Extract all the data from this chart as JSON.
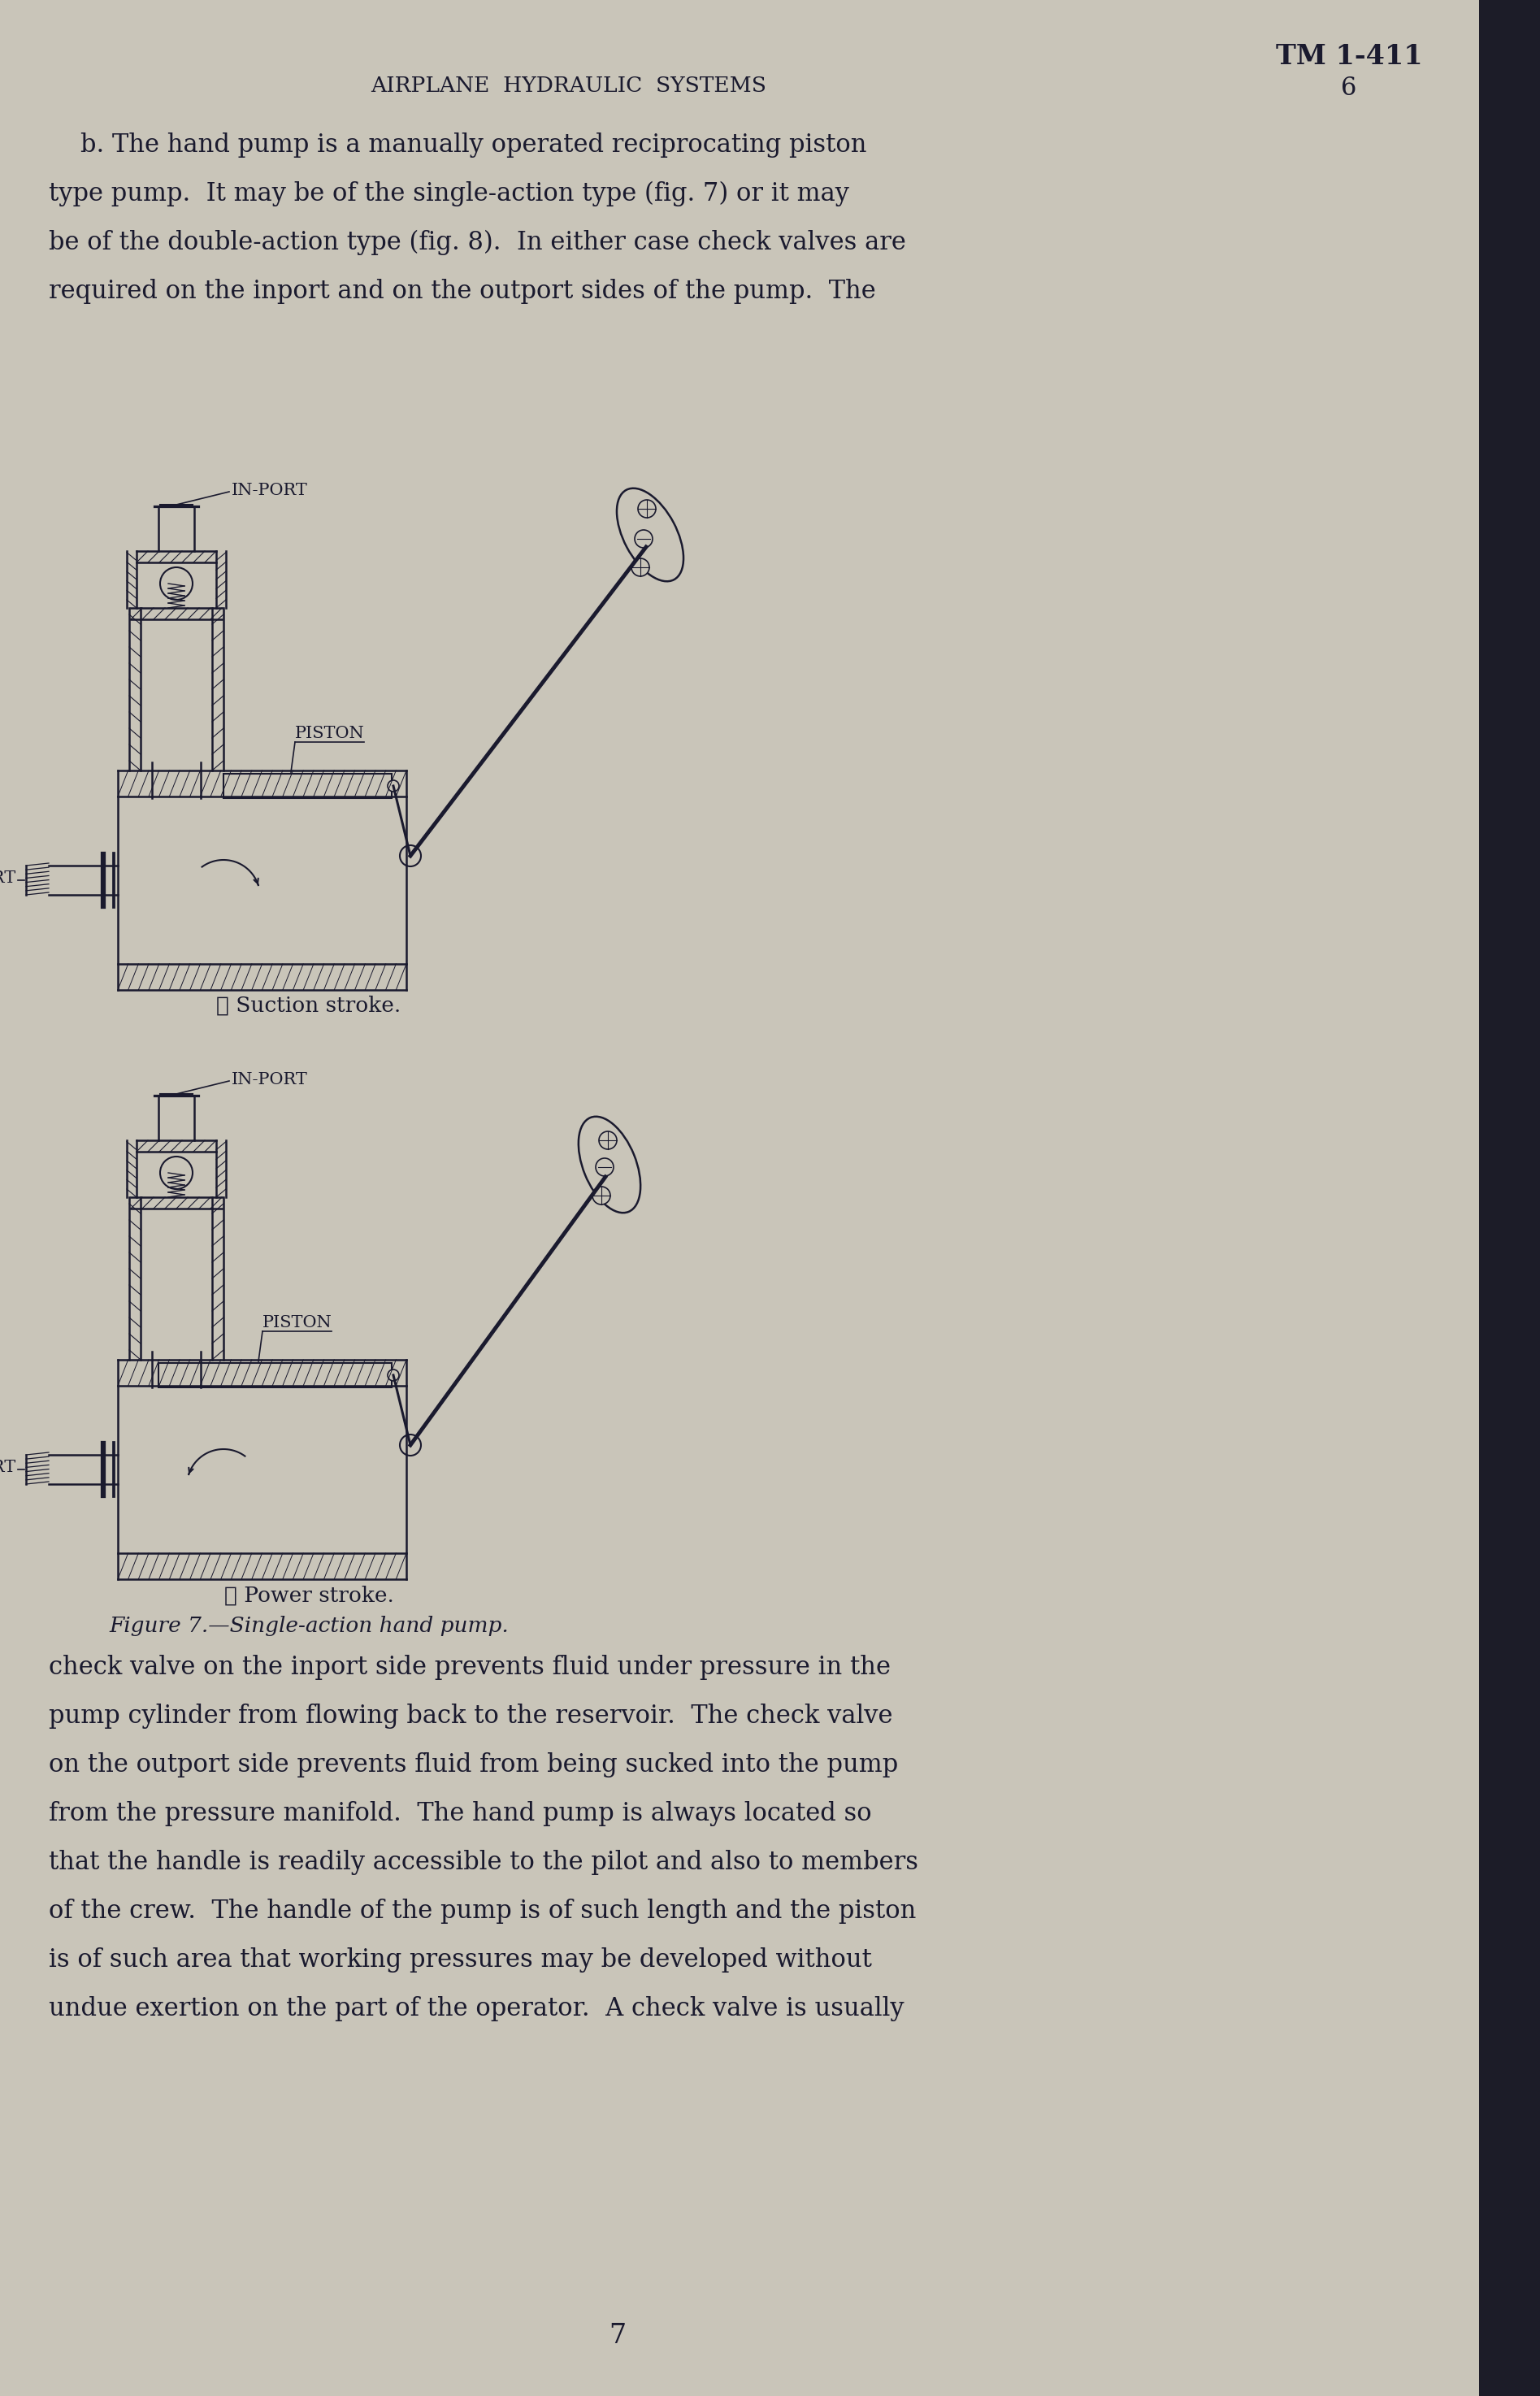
{
  "bg_color": "#c9c5b9",
  "text_color": "#1a1a2e",
  "page_number": "7",
  "tm_number": "TM 1-411",
  "chapter_number": "6",
  "header": "AIRPLANE  HYDRAULIC  SYSTEMS",
  "body_text_line1": "    b. The hand pump is a manually operated reciprocating piston",
  "body_text_line2": "type pump.  It may be of the single-action type (fig. 7) or it may",
  "body_text_line3": "be of the double-action type (fig. 8).  In either case check valves are",
  "body_text_line4": "required on the inport and on the outport sides of the pump.  The",
  "caption1": "① Suction stroke.",
  "caption2": "② Power stroke.",
  "figure_caption": "Figure 7.—Single-action hand pump.",
  "body_text2_line1": "check valve on the inport side prevents fluid under pressure in the",
  "body_text2_line2": "pump cylinder from flowing back to the reservoir.  The check valve",
  "body_text2_line3": "on the outport side prevents fluid from being sucked into the pump",
  "body_text2_line4": "from the pressure manifold.  The hand pump is always located so",
  "body_text2_line5": "that the handle is readily accessible to the pilot and also to members",
  "body_text2_line6": "of the crew.  The handle of the pump is of such length and the piston",
  "body_text2_line7": "is of such area that working pressures may be developed without",
  "body_text2_line8": "undue exertion on the part of the operator.  A check valve is usually"
}
